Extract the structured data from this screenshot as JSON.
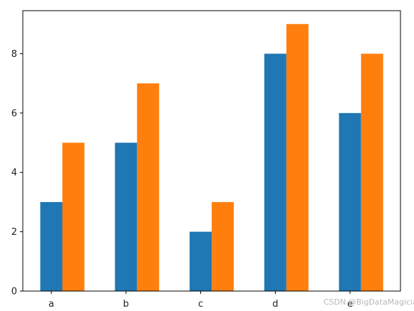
{
  "chart_data": {
    "type": "bar",
    "categories": [
      "a",
      "b",
      "c",
      "d",
      "e"
    ],
    "series": [
      {
        "color": "#1f77b4",
        "values": [
          3,
          5,
          2,
          8,
          6
        ]
      },
      {
        "color": "#ff7f0e",
        "values": [
          5,
          7,
          3,
          9,
          8
        ]
      }
    ],
    "ylim": [
      0,
      9.45
    ],
    "yticks": [
      "0",
      "2",
      "4",
      "6",
      "8"
    ],
    "grid": false,
    "title": "",
    "xlabel": "",
    "ylabel": ""
  },
  "watermark": "CSDN @BigDataMagician"
}
